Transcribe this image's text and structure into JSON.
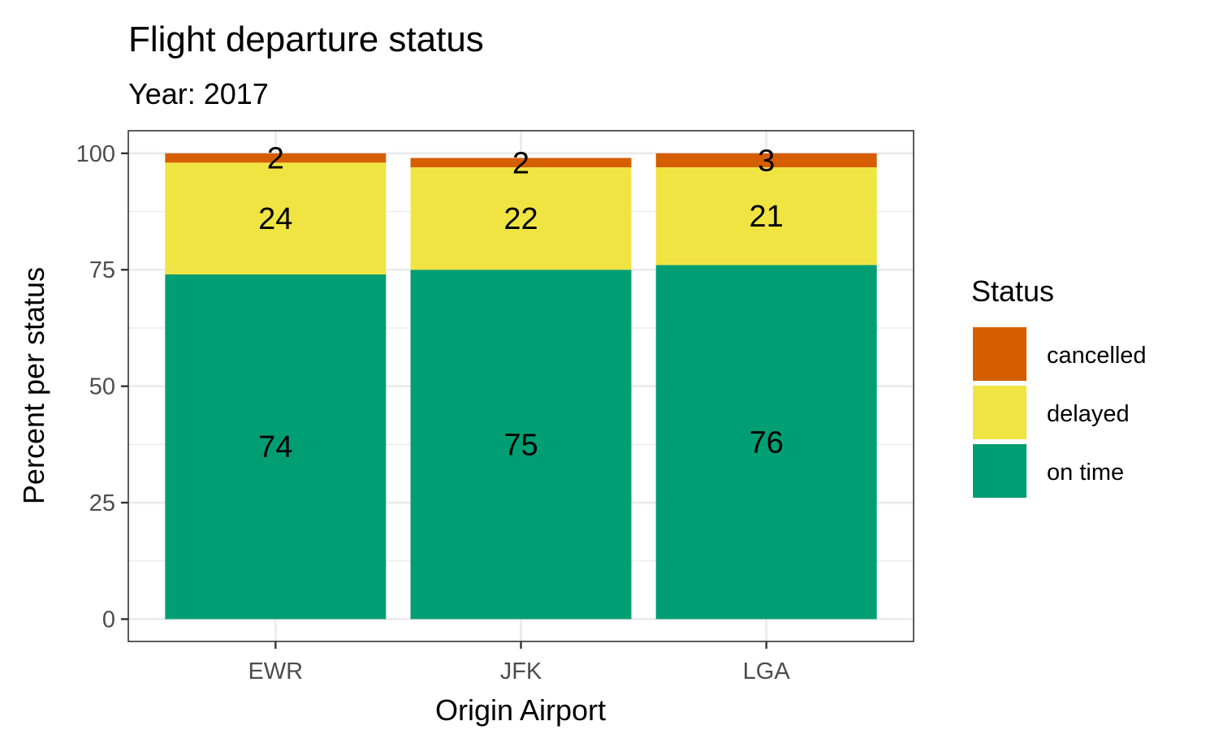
{
  "chart_data": {
    "type": "bar",
    "stacked": true,
    "title": "Flight departure status",
    "subtitle": "Year: 2017",
    "xlabel": "Origin Airport",
    "ylabel": "Percent per status",
    "ylim": [
      0,
      105
    ],
    "yticks": [
      0,
      25,
      50,
      75,
      100
    ],
    "categories": [
      "EWR",
      "JFK",
      "LGA"
    ],
    "series": [
      {
        "name": "on time",
        "values": [
          74,
          75,
          76
        ],
        "labels": [
          "74",
          "75",
          "76"
        ],
        "color": "#009E73"
      },
      {
        "name": "delayed",
        "values": [
          24,
          22,
          21
        ],
        "labels": [
          "24",
          "22",
          "21"
        ],
        "color": "#F0E442"
      },
      {
        "name": "cancelled",
        "values": [
          2,
          2,
          3
        ],
        "labels": [
          "2",
          "2",
          "3"
        ],
        "color": "#D55E00"
      }
    ],
    "legend": {
      "title": "Status",
      "position": "right",
      "entries": [
        "cancelled",
        "delayed",
        "on time"
      ]
    },
    "grid": true,
    "panel_border": true
  }
}
